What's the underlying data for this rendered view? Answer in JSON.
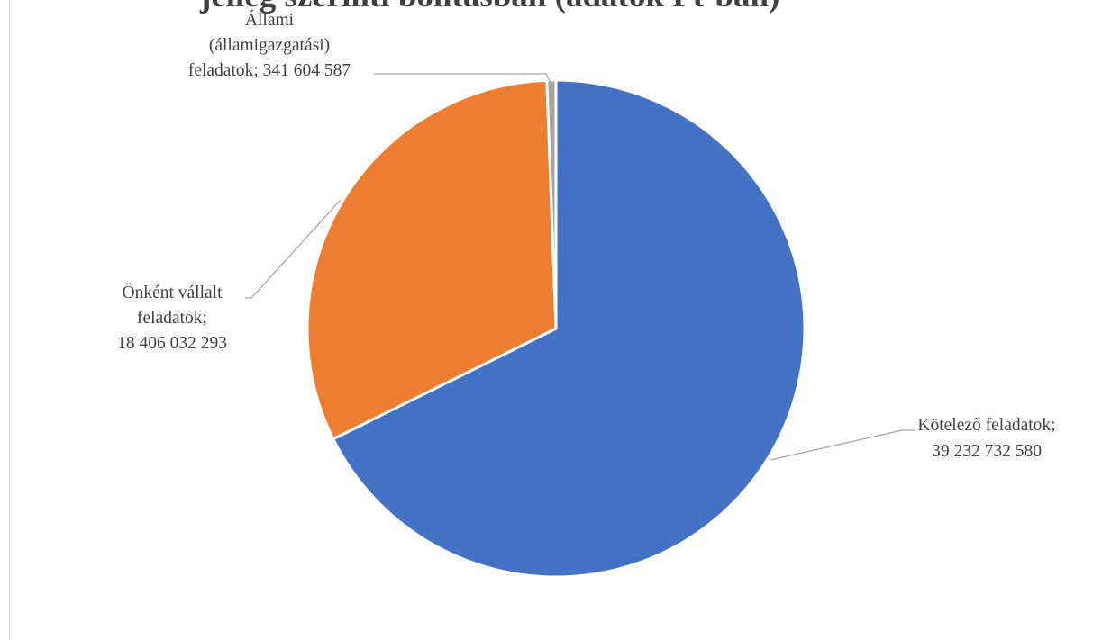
{
  "chart_data": {
    "type": "pie",
    "title": "jelleg szerinti bontásban (adatok Ft-ban)",
    "slices": [
      {
        "name": "Kötelező feladatok",
        "value": 39232732580,
        "color": "#4472c4",
        "label_lines": [
          "Kötelező feladatok;",
          "39 232 732 580"
        ]
      },
      {
        "name": "Önként vállalt feladatok",
        "value": 18406032293,
        "color": "#ed7d31",
        "label_lines": [
          "Önként vállalt",
          "feladatok;",
          "18 406 032 293"
        ]
      },
      {
        "name": "Állami (államigazgatási) feladatok",
        "value": 341604587,
        "color": "#a5a5a5",
        "label_lines": [
          "Állami",
          "(államigazgatási)",
          "feladatok; 341 604 587"
        ]
      }
    ],
    "legend": "none",
    "data_labels": "outside-with-leader-lines"
  }
}
